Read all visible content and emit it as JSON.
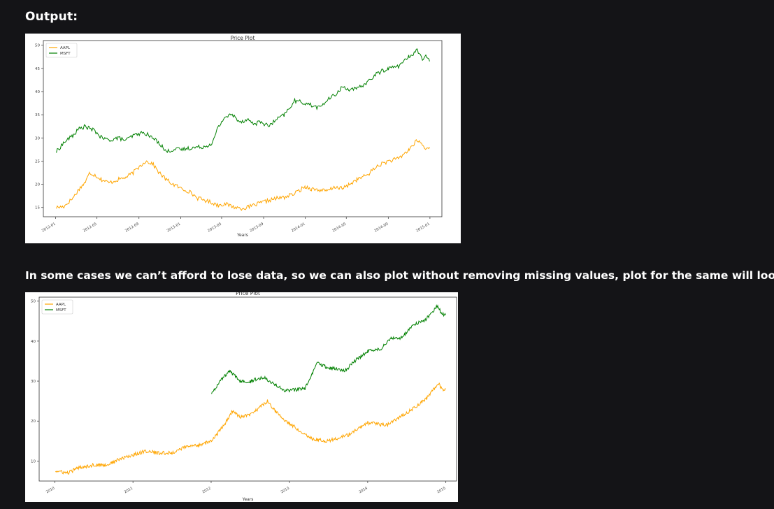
{
  "page": {
    "heading": "Output:",
    "paragraph": "In some cases we can’t afford to lose data, so we can also plot without removing missing values, plot for the same will look like:"
  },
  "colors": {
    "AAPL": "#ffa500",
    "MSFT": "#008000",
    "background": "#141417"
  },
  "chart_data": [
    {
      "type": "line",
      "title": "Price Plot",
      "xlabel": "Years",
      "ylabel": "",
      "legend": "top-left",
      "grid": false,
      "xlim": [
        "2011-11-26",
        "2015-02-05"
      ],
      "ylim": [
        13,
        51
      ],
      "yticks": [
        15,
        20,
        25,
        30,
        35,
        40,
        45,
        50
      ],
      "xticks": [
        "2012-01",
        "2012-05",
        "2012-09",
        "2013-01",
        "2013-05",
        "2013-09",
        "2014-01",
        "2014-05",
        "2014-09",
        "2015-01"
      ],
      "series": [
        {
          "name": "AAPL",
          "x": [
            "2012-01-03",
            "2012-01-25",
            "2012-02-20",
            "2012-03-10",
            "2012-03-28",
            "2012-04-10",
            "2012-04-25",
            "2012-05-15",
            "2012-06-05",
            "2012-07-01",
            "2012-07-25",
            "2012-08-15",
            "2012-09-05",
            "2012-09-20",
            "2012-10-10",
            "2012-10-30",
            "2012-11-20",
            "2012-12-10",
            "2013-01-05",
            "2013-01-25",
            "2013-02-20",
            "2013-03-15",
            "2013-04-05",
            "2013-04-19",
            "2013-05-10",
            "2013-06-01",
            "2013-06-25",
            "2013-07-15",
            "2013-08-05",
            "2013-08-25",
            "2013-09-15",
            "2013-10-10",
            "2013-11-01",
            "2013-12-01",
            "2014-01-01",
            "2014-01-20",
            "2014-02-10",
            "2014-03-05",
            "2014-04-01",
            "2014-04-20",
            "2014-05-10",
            "2014-06-01",
            "2014-07-01",
            "2014-08-01",
            "2014-09-01",
            "2014-10-01",
            "2014-11-01",
            "2014-11-25",
            "2014-12-10",
            "2014-12-20",
            "2014-12-31"
          ],
          "values": [
            15,
            15.2,
            17,
            19,
            20.5,
            22.5,
            22,
            21,
            20.3,
            21,
            21.5,
            22.5,
            24,
            25,
            24.5,
            22.5,
            21,
            20,
            19,
            18.5,
            17,
            16.5,
            16,
            15.5,
            15.8,
            15.2,
            14.8,
            15,
            15.5,
            16,
            16.5,
            17,
            17.2,
            18,
            19.5,
            19,
            18.8,
            18.5,
            19.5,
            19,
            20,
            21,
            22,
            24,
            25,
            25.5,
            27.5,
            29.5,
            28.5,
            27.5,
            28
          ]
        },
        {
          "name": "MSFT",
          "x": [
            "2012-01-03",
            "2012-01-25",
            "2012-02-20",
            "2012-03-10",
            "2012-03-28",
            "2012-04-10",
            "2012-04-25",
            "2012-05-15",
            "2012-06-05",
            "2012-07-01",
            "2012-07-25",
            "2012-08-15",
            "2012-09-05",
            "2012-09-20",
            "2012-10-10",
            "2012-10-30",
            "2012-11-20",
            "2012-12-10",
            "2013-01-05",
            "2013-01-25",
            "2013-02-20",
            "2013-03-15",
            "2013-04-05",
            "2013-04-19",
            "2013-05-10",
            "2013-06-01",
            "2013-06-25",
            "2013-07-15",
            "2013-08-05",
            "2013-08-25",
            "2013-09-15",
            "2013-10-10",
            "2013-11-01",
            "2013-12-01",
            "2014-01-01",
            "2014-01-20",
            "2014-02-10",
            "2014-03-05",
            "2014-04-01",
            "2014-04-20",
            "2014-05-10",
            "2014-06-01",
            "2014-07-01",
            "2014-08-01",
            "2014-09-01",
            "2014-10-01",
            "2014-11-01",
            "2014-11-25",
            "2014-12-10",
            "2014-12-20",
            "2014-12-31"
          ],
          "values": [
            27,
            29,
            30.5,
            32,
            32.5,
            32,
            31.5,
            30,
            29.5,
            30,
            29.5,
            30.5,
            31,
            31,
            30,
            29,
            27,
            27.5,
            27.5,
            27.8,
            28,
            28.2,
            29,
            32,
            34.5,
            35,
            33.5,
            34,
            33,
            33.5,
            32.5,
            34,
            35,
            38,
            37.5,
            37,
            36.5,
            38,
            39.5,
            41,
            40.5,
            40.5,
            42,
            44,
            45,
            45.5,
            47.5,
            49,
            47,
            47.5,
            46.5
          ]
        }
      ]
    },
    {
      "type": "line",
      "title": "Price Plot",
      "xlabel": "Years",
      "ylabel": "",
      "legend": "top-left",
      "grid": false,
      "xlim": [
        "2009-10-20",
        "2015-02-20"
      ],
      "ylim": [
        5,
        51
      ],
      "yticks": [
        10,
        20,
        30,
        40,
        50
      ],
      "xticks": [
        "2010",
        "2011",
        "2012",
        "2013",
        "2014",
        "2015"
      ],
      "series": [
        {
          "name": "AAPL",
          "x": [
            "2010-01-04",
            "2010-03-01",
            "2010-05-01",
            "2010-07-01",
            "2010-09-01",
            "2010-11-01",
            "2011-01-01",
            "2011-03-01",
            "2011-05-01",
            "2011-07-01",
            "2011-09-01",
            "2011-11-01",
            "2012-01-03",
            "2012-03-01",
            "2012-04-10",
            "2012-05-15",
            "2012-07-01",
            "2012-09-20",
            "2012-11-20",
            "2013-01-25",
            "2013-04-19",
            "2013-07-01",
            "2013-10-01",
            "2014-01-01",
            "2014-04-01",
            "2014-07-01",
            "2014-10-01",
            "2014-11-25",
            "2014-12-20",
            "2014-12-31"
          ],
          "values": [
            7.5,
            7,
            8.5,
            9,
            9,
            10.5,
            11.5,
            12.5,
            12,
            12,
            13.5,
            14,
            15,
            19,
            22.5,
            21,
            21.5,
            25,
            21,
            18.5,
            15.5,
            15,
            16.5,
            19.5,
            19,
            22,
            25.5,
            29.5,
            27.5,
            28
          ]
        },
        {
          "name": "MSFT",
          "x": [
            "2012-01-03",
            "2012-02-20",
            "2012-03-28",
            "2012-05-15",
            "2012-07-01",
            "2012-09-05",
            "2012-10-30",
            "2012-12-10",
            "2013-01-25",
            "2013-03-15",
            "2013-04-19",
            "2013-05-10",
            "2013-06-25",
            "2013-08-05",
            "2013-09-15",
            "2013-11-01",
            "2014-01-01",
            "2014-03-05",
            "2014-04-20",
            "2014-06-01",
            "2014-08-01",
            "2014-10-01",
            "2014-11-25",
            "2014-12-10",
            "2014-12-31"
          ],
          "values": [
            27,
            30.5,
            32.5,
            30,
            30,
            31,
            29,
            27.5,
            27.8,
            28.2,
            32,
            34.5,
            33.5,
            33,
            32.5,
            35,
            37.5,
            38,
            41,
            40.5,
            44,
            45.5,
            49,
            47,
            46.5
          ]
        }
      ]
    }
  ]
}
